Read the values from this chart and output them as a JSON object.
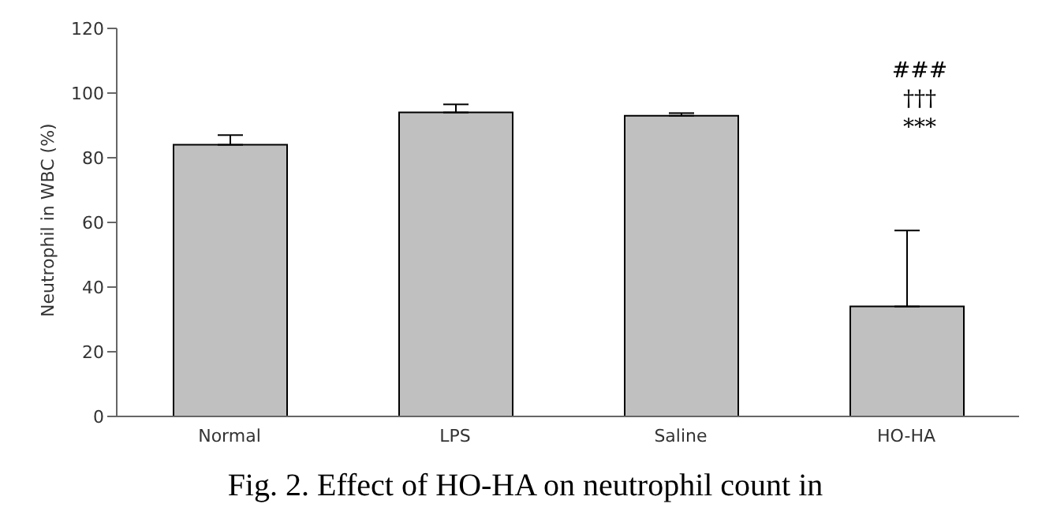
{
  "chart_data": {
    "type": "bar",
    "ylabel": "Neutrophil in WBC (%)",
    "categories": [
      "Normal",
      "LPS",
      "Saline",
      "HO-HA"
    ],
    "values": [
      84,
      94,
      93,
      34
    ],
    "color": "#c0c0c0",
    "errors": [
      [
        84,
        87
      ],
      [
        94,
        96.5
      ],
      [
        93,
        93.8
      ],
      [
        34,
        57.5
      ]
    ],
    "ylim": [
      0,
      120
    ],
    "yticks": [
      0,
      20,
      40,
      60,
      80,
      100,
      120
    ],
    "grid": false,
    "annotations": [
      "###",
      "†††",
      "***",
      "Fig. 2. Effect of HO-HA on neutrophil count in"
    ]
  }
}
